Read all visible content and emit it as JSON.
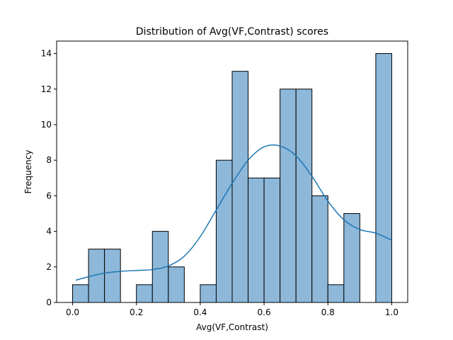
{
  "chart_data": {
    "type": "bar",
    "subtype": "histogram_with_kde",
    "title": "Distribution of Avg(VF,Contrast) scores",
    "xlabel": "Avg(VF,Contrast)",
    "ylabel": "Frequency",
    "xlim": [
      -0.05,
      1.05
    ],
    "ylim": [
      0,
      14.7
    ],
    "x_ticks": [
      0.0,
      0.2,
      0.4,
      0.6,
      0.8,
      1.0
    ],
    "x_tick_labels": [
      "0.0",
      "0.2",
      "0.4",
      "0.6",
      "0.8",
      "1.0"
    ],
    "y_ticks": [
      0,
      2,
      4,
      6,
      8,
      10,
      12,
      14
    ],
    "y_tick_labels": [
      "0",
      "2",
      "4",
      "6",
      "8",
      "10",
      "12",
      "14"
    ],
    "grid": false,
    "legend": "none",
    "bins": {
      "edges": [
        0.0,
        0.05,
        0.1,
        0.15,
        0.2,
        0.25,
        0.3,
        0.35,
        0.4,
        0.45,
        0.5,
        0.55,
        0.6,
        0.65,
        0.7,
        0.75,
        0.8,
        0.85,
        0.9,
        0.95,
        1.0
      ],
      "counts": [
        1,
        3,
        3,
        0,
        1,
        4,
        2,
        0,
        1,
        8,
        13,
        7,
        7,
        12,
        12,
        6,
        1,
        5,
        0,
        14
      ]
    },
    "kde": {
      "x": [
        0.01,
        0.05,
        0.1,
        0.15,
        0.2,
        0.25,
        0.3,
        0.35,
        0.4,
        0.45,
        0.5,
        0.55,
        0.6,
        0.65,
        0.7,
        0.75,
        0.8,
        0.85,
        0.9,
        0.95,
        1.0
      ],
      "y": [
        1.25,
        1.45,
        1.65,
        1.75,
        1.8,
        1.85,
        2.05,
        2.6,
        3.7,
        5.2,
        6.7,
        8.0,
        8.75,
        8.8,
        8.25,
        7.1,
        5.7,
        4.65,
        4.1,
        3.9,
        3.5
      ]
    },
    "colors": {
      "bar_fill": "#8db8da",
      "bar_edge": "#000000",
      "kde_line": "#1f77b4"
    }
  }
}
